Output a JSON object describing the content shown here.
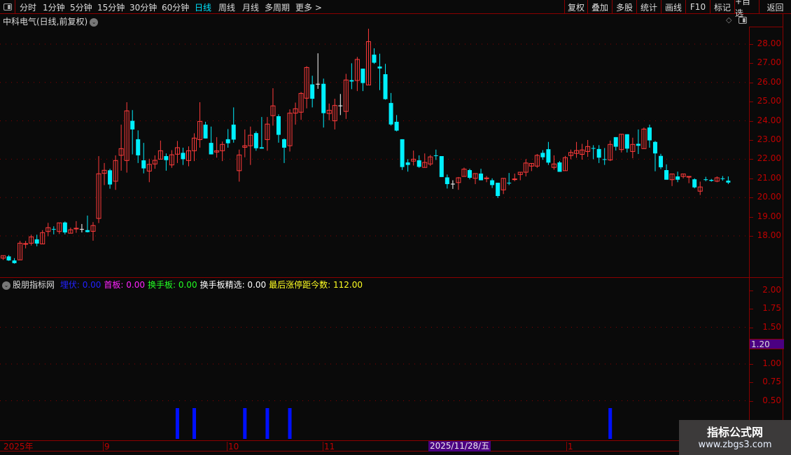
{
  "toolbar": {
    "periods": [
      "分时",
      "1分钟",
      "5分钟",
      "15分钟",
      "30分钟",
      "60分钟",
      "日线",
      "周线",
      "月线",
      "多周期",
      "更多 >"
    ],
    "active_period": "日线",
    "buttons": [
      "复权",
      "叠加",
      "多股",
      "统计",
      "画线",
      "F10",
      "标记",
      "+自选",
      "返回"
    ]
  },
  "stock_title": "中科电气(日线,前复权)",
  "colors": {
    "up": "#ff3b3b",
    "down": "#00f0ff",
    "doji": "#ffffff",
    "grid": "#8b0000",
    "axis_text": "#c00000",
    "signal": "#0010ff",
    "highlight": "#4b0082"
  },
  "indicator": {
    "name": "股朋指标网",
    "items": [
      {
        "label": "埋伏",
        "value": ": 0.00",
        "color": "#2222ff"
      },
      {
        "label": "首板",
        "value": ": 0.00",
        "color": "#ff22ff"
      },
      {
        "label": "换手板",
        "value": ": 0.00",
        "color": "#22ff22"
      },
      {
        "label": "换手板精选",
        "value": ": 0.00",
        "color": "#ffffff"
      },
      {
        "label": "最后涨停距今数",
        "value": ": 112.00",
        "color": "#ffff22"
      }
    ],
    "axis_ticks": [
      "2.00",
      "1.75",
      "1.50",
      "1.00",
      "0.75",
      "0.50"
    ],
    "crosshair_value": "1.20"
  },
  "price_axis": [
    "28.00",
    "27.00",
    "26.00",
    "25.00",
    "24.00",
    "23.00",
    "22.00",
    "21.00",
    "20.00",
    "19.00",
    "18.00"
  ],
  "date_axis": {
    "labels": [
      "2025年",
      "9",
      "10",
      "11",
      "1"
    ],
    "crosshair_date": "2025/11/28/五"
  },
  "watermark": {
    "name": "指标公式网",
    "url": "www.zbgs3.com"
  },
  "chart_data": [
    {
      "type": "candlestick",
      "ylim": [
        16.5,
        29
      ],
      "grid": true,
      "ohlc": [
        [
          16.84,
          16.97,
          16.75,
          16.97
        ],
        [
          16.93,
          17.0,
          16.7,
          16.72
        ],
        [
          16.72,
          16.84,
          16.55,
          16.58
        ],
        [
          16.75,
          17.74,
          16.75,
          17.62
        ],
        [
          17.58,
          17.74,
          17.35,
          17.6
        ],
        [
          17.62,
          18.06,
          17.5,
          17.95
        ],
        [
          17.82,
          18.06,
          17.46,
          17.6
        ],
        [
          17.58,
          18.3,
          17.58,
          18.17
        ],
        [
          18.23,
          18.68,
          17.98,
          18.43
        ],
        [
          18.36,
          18.5,
          18.08,
          18.34
        ],
        [
          18.23,
          18.68,
          18.1,
          18.68
        ],
        [
          18.7,
          18.75,
          18.08,
          18.18
        ],
        [
          18.14,
          18.43,
          18.14,
          18.32
        ],
        [
          18.38,
          18.77,
          18.16,
          18.4
        ],
        [
          18.36,
          18.62,
          18.18,
          18.36
        ],
        [
          18.3,
          19.06,
          18.18,
          18.2
        ],
        [
          18.24,
          18.72,
          17.75,
          18.54
        ],
        [
          18.91,
          22.16,
          18.67,
          21.24
        ],
        [
          21.26,
          21.8,
          20.65,
          21.42
        ],
        [
          21.42,
          21.5,
          20.46,
          20.68
        ],
        [
          20.85,
          22.2,
          20.4,
          21.93
        ],
        [
          22.2,
          23.8,
          21.4,
          22.55
        ],
        [
          21.93,
          24.97,
          21.3,
          24.52
        ],
        [
          24.0,
          24.56,
          22.25,
          23.55
        ],
        [
          23.04,
          23.5,
          21.8,
          22.2
        ],
        [
          21.94,
          22.85,
          21.26,
          21.52
        ],
        [
          21.38,
          22.02,
          20.8,
          21.73
        ],
        [
          21.75,
          22.2,
          21.5,
          21.94
        ],
        [
          22.0,
          22.97,
          22.0,
          22.44
        ],
        [
          22.16,
          22.3,
          21.4,
          21.95
        ],
        [
          21.7,
          22.47,
          21.55,
          22.23
        ],
        [
          22.26,
          22.95,
          21.8,
          22.6
        ],
        [
          22.33,
          22.6,
          21.7,
          22.0
        ],
        [
          21.93,
          22.67,
          21.63,
          22.44
        ],
        [
          22.44,
          23.35,
          21.9,
          23.1
        ],
        [
          23.02,
          24.97,
          22.6,
          23.97
        ],
        [
          23.8,
          23.95,
          23.08,
          23.08
        ],
        [
          22.85,
          23.7,
          22.25,
          22.25
        ],
        [
          22.37,
          23.15,
          22.08,
          22.44
        ],
        [
          22.44,
          22.92,
          21.9,
          22.77
        ],
        [
          23.04,
          23.57,
          22.6,
          22.83
        ],
        [
          23.8,
          24.7,
          22.86,
          23.02
        ],
        [
          21.4,
          22.5,
          20.83,
          22.22
        ],
        [
          22.62,
          23.55,
          22.1,
          22.7
        ],
        [
          22.7,
          23.7,
          21.7,
          23.25
        ],
        [
          23.36,
          23.45,
          22.44,
          22.57
        ],
        [
          22.62,
          24.2,
          22.55,
          22.55
        ],
        [
          23.02,
          24.2,
          22.44,
          23.83
        ],
        [
          24.27,
          25.7,
          23.75,
          24.78
        ],
        [
          24.24,
          24.34,
          22.86,
          23.27
        ],
        [
          23.04,
          23.08,
          21.8,
          22.6
        ],
        [
          22.7,
          24.6,
          22.4,
          24.4
        ],
        [
          24.4,
          24.95,
          23.8,
          24.63
        ],
        [
          24.45,
          25.5,
          24.05,
          25.43
        ],
        [
          25.18,
          26.85,
          24.65,
          26.78
        ],
        [
          25.9,
          26.35,
          24.7,
          25.15
        ],
        [
          25.93,
          27.52,
          25.67,
          25.93
        ],
        [
          25.93,
          26.2,
          23.65,
          24.4
        ],
        [
          24.38,
          24.9,
          24.03,
          24.55
        ],
        [
          24.0,
          25.15,
          23.55,
          24.8
        ],
        [
          24.8,
          25.4,
          24.3,
          24.8
        ],
        [
          24.49,
          26.45,
          24.1,
          26.13
        ],
        [
          26.12,
          27.0,
          25.65,
          26.05
        ],
        [
          26.1,
          27.33,
          25.55,
          27.2
        ],
        [
          26.72,
          26.72,
          25.55,
          25.97
        ],
        [
          25.87,
          28.8,
          25.87,
          28.13
        ],
        [
          27.45,
          27.78,
          26.97,
          27.03
        ],
        [
          26.83,
          27.5,
          25.6,
          26.73
        ],
        [
          26.43,
          26.97,
          25.1,
          25.13
        ],
        [
          24.93,
          25.45,
          23.75,
          23.81
        ],
        [
          23.95,
          24.3,
          23.45,
          23.49
        ],
        [
          23.04,
          23.04,
          21.44,
          21.59
        ],
        [
          21.83,
          22.0,
          21.35,
          21.7
        ],
        [
          21.9,
          22.45,
          21.67,
          22.0
        ],
        [
          21.94,
          22.2,
          21.55,
          21.6
        ],
        [
          21.57,
          22.3,
          21.57,
          21.83
        ],
        [
          21.75,
          22.22,
          21.65,
          22.12
        ],
        [
          22.2,
          22.5,
          21.96,
          22.18
        ],
        [
          22.16,
          22.16,
          21.07,
          21.07
        ],
        [
          21.05,
          21.2,
          20.47,
          20.7
        ],
        [
          20.72,
          20.9,
          20.45,
          20.72
        ],
        [
          20.78,
          21.07,
          20.4,
          21.03
        ],
        [
          21.1,
          21.56,
          21.1,
          21.48
        ],
        [
          21.43,
          21.5,
          20.95,
          21.03
        ],
        [
          21.0,
          21.25,
          20.7,
          21.25
        ],
        [
          21.25,
          21.5,
          20.9,
          20.9
        ],
        [
          21.0,
          21.12,
          20.8,
          21.02
        ],
        [
          20.9,
          21.0,
          20.5,
          20.65
        ],
        [
          20.77,
          20.77,
          19.98,
          20.08
        ],
        [
          20.4,
          21.0,
          20.18,
          21.0
        ],
        [
          20.77,
          21.28,
          20.65,
          20.75
        ],
        [
          20.95,
          21.25,
          20.85,
          20.97
        ],
        [
          21.2,
          21.32,
          20.9,
          21.32
        ],
        [
          21.32,
          22.0,
          21.1,
          21.8
        ],
        [
          21.64,
          21.78,
          21.38,
          21.78
        ],
        [
          21.64,
          22.27,
          21.55,
          22.2
        ],
        [
          22.33,
          22.47,
          21.97,
          22.1
        ],
        [
          22.52,
          22.9,
          21.7,
          21.82
        ],
        [
          21.57,
          22.2,
          21.45,
          21.75
        ],
        [
          21.83,
          21.9,
          21.34,
          21.34
        ],
        [
          21.4,
          22.17,
          21.4,
          22.08
        ],
        [
          22.19,
          22.5,
          22.0,
          22.35
        ],
        [
          22.3,
          22.9,
          22.07,
          22.45
        ],
        [
          22.25,
          22.8,
          21.98,
          22.48
        ],
        [
          22.4,
          23.0,
          22.12,
          22.66
        ],
        [
          22.58,
          22.73,
          22.0,
          22.55
        ],
        [
          22.53,
          22.73,
          21.8,
          22.08
        ],
        [
          22.0,
          22.58,
          21.7,
          21.97
        ],
        [
          21.96,
          22.97,
          21.9,
          22.77
        ],
        [
          23.15,
          23.15,
          22.45,
          22.65
        ],
        [
          22.5,
          23.3,
          22.35,
          23.3
        ],
        [
          23.3,
          23.3,
          22.35,
          22.55
        ],
        [
          22.4,
          23.12,
          22.05,
          22.77
        ],
        [
          22.8,
          23.55,
          22.27,
          22.7
        ],
        [
          22.55,
          23.65,
          22.55,
          23.57
        ],
        [
          23.65,
          23.8,
          22.6,
          22.98
        ],
        [
          22.9,
          22.95,
          21.37,
          22.3
        ],
        [
          22.17,
          22.28,
          21.48,
          21.58
        ],
        [
          21.43,
          21.73,
          20.93,
          20.93
        ],
        [
          20.93,
          21.23,
          20.6,
          21.23
        ],
        [
          21.1,
          21.35,
          20.8,
          20.93
        ],
        [
          21.1,
          21.25,
          21.0,
          21.23
        ],
        [
          21.08,
          21.1,
          20.75,
          21.1
        ],
        [
          20.95,
          21.0,
          20.48,
          20.53
        ],
        [
          20.33,
          20.83,
          20.13,
          20.55
        ],
        [
          20.95,
          21.08,
          20.85,
          20.93
        ],
        [
          20.92,
          20.97,
          20.83,
          20.87
        ],
        [
          20.85,
          21.1,
          20.8,
          21.03
        ],
        [
          21.0,
          21.12,
          20.88,
          20.98
        ],
        [
          20.88,
          21.1,
          20.7,
          20.78
        ]
      ]
    },
    {
      "type": "bar",
      "series": [
        {
          "name": "埋伏",
          "signal_candle_index": [
            31,
            34,
            43,
            47,
            51,
            108
          ],
          "values": [
            0.4,
            0.4,
            0.4,
            0.4,
            0.4,
            0.4
          ]
        }
      ],
      "ylim": [
        0,
        2.1
      ]
    }
  ]
}
